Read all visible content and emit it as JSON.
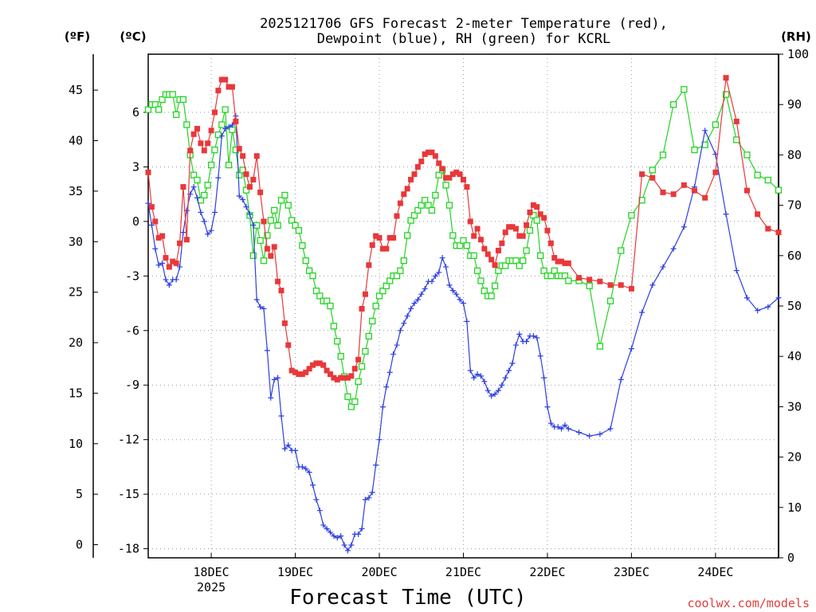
{
  "chart_data": {
    "type": "line",
    "title_lines": [
      "2025121706 GFS Forecast 2-meter Temperature (red),",
      "Dewpoint (blue), RH (green) for KCRL"
    ],
    "xlabel": "Forecast Time (UTC)",
    "credit": "coolwx.com/models",
    "unit_f": "(ºF)",
    "unit_c": "(ºC)",
    "unit_rh": "(RH)",
    "x_range_days": [
      "17DEC 06Z",
      "24DEC 18Z"
    ],
    "x_ticks": [
      {
        "day": "18DEC",
        "year": "2025"
      },
      {
        "day": "19DEC"
      },
      {
        "day": "20DEC"
      },
      {
        "day": "21DEC"
      },
      {
        "day": "22DEC"
      },
      {
        "day": "23DEC"
      },
      {
        "day": "24DEC"
      }
    ],
    "c_range": [
      -18.5,
      9.2
    ],
    "c_ticks": [
      6,
      3,
      0,
      -3,
      -6,
      -9,
      -12,
      -15,
      -18
    ],
    "f_ticks": [
      45,
      40,
      35,
      30,
      25,
      20,
      15,
      10,
      5,
      0
    ],
    "rh_range": [
      0,
      100
    ],
    "rh_ticks": [
      100,
      90,
      80,
      70,
      60,
      50,
      40,
      30,
      20,
      10,
      0
    ],
    "series": [
      {
        "name": "Temperature",
        "color": "#e8383a",
        "marker": "filled-square",
        "axis": "c",
        "t": [
          0,
          1,
          2,
          3,
          4,
          5,
          6,
          7,
          8,
          9,
          10,
          11,
          12,
          13,
          14,
          15,
          16,
          17,
          18,
          19,
          20,
          21,
          22,
          23,
          24,
          25,
          26,
          27,
          28,
          29,
          30,
          31,
          32,
          33,
          34,
          35,
          36,
          37,
          38,
          39,
          40,
          41,
          42,
          43,
          44,
          45,
          46,
          47,
          48,
          49,
          50,
          51,
          52,
          53,
          54,
          55,
          56,
          57,
          58,
          59,
          60,
          61,
          62,
          63,
          64,
          65,
          66,
          67,
          68,
          69,
          70,
          71,
          72,
          73,
          74,
          75,
          76,
          77,
          78,
          79,
          80,
          81,
          82,
          83,
          84,
          85,
          86,
          87,
          88,
          89,
          90,
          91,
          92,
          93,
          94,
          95,
          96,
          97,
          98,
          99,
          100,
          101,
          102,
          103,
          104,
          105,
          106,
          107,
          108,
          109,
          110,
          111,
          112,
          113,
          114,
          115,
          116,
          117,
          118,
          119,
          120,
          123,
          126,
          129,
          132,
          135,
          138,
          141,
          144,
          147,
          150,
          153,
          156,
          159,
          162,
          165,
          168,
          171,
          174,
          177,
          180
        ],
        "v": [
          2.7,
          0.8,
          0.0,
          -0.9,
          -0.8,
          -2.0,
          -2.5,
          -2.2,
          -2.3,
          -1.2,
          1.9,
          -1.0,
          3.9,
          4.8,
          5.1,
          4.3,
          3.9,
          4.3,
          5.0,
          6.0,
          7.2,
          7.8,
          7.8,
          7.4,
          7.4,
          5.5,
          4.0,
          3.6,
          2.6,
          1.9,
          2.3,
          3.6,
          1.6,
          0.0,
          -1.5,
          -1.9,
          -1.4,
          -3.3,
          -3.8,
          -5.6,
          -6.8,
          -8.2,
          -8.3,
          -8.4,
          -8.4,
          -8.3,
          -8.1,
          -7.9,
          -7.8,
          -7.8,
          -7.9,
          -8.2,
          -8.4,
          -8.6,
          -8.7,
          -8.6,
          -8.6,
          -8.6,
          -8.5,
          -8.1,
          -7.6,
          -4.8,
          -4.0,
          -2.4,
          -1.3,
          -0.8,
          -0.9,
          -1.5,
          -1.5,
          -0.9,
          -0.9,
          0.3,
          1.0,
          1.5,
          1.8,
          2.3,
          2.6,
          3.0,
          3.3,
          3.7,
          3.8,
          3.8,
          3.6,
          3.2,
          2.9,
          2.4,
          2.4,
          2.6,
          2.7,
          2.6,
          2.3,
          1.9,
          0.0,
          -0.8,
          -0.4,
          -1.0,
          -1.5,
          -1.8,
          -2.1,
          -2.4,
          -1.6,
          -1.2,
          -0.6,
          -0.3,
          -0.3,
          -0.4,
          -0.8,
          -0.8,
          -0.2,
          0.5,
          0.9,
          0.8,
          0.4,
          0.2,
          -0.5,
          -1.2,
          -2.0,
          -2.2,
          -2.2,
          -2.3,
          -2.3,
          -3.1,
          -3.2,
          -3.3,
          -3.5,
          -3.5,
          -3.7,
          2.6,
          2.4,
          1.6,
          1.5,
          2.0,
          1.7,
          1.3,
          2.7,
          7.9,
          5.5,
          1.7,
          0.4,
          -0.4,
          -0.6,
          -0.5,
          0.0,
          2.8
        ]
      },
      {
        "name": "Dewpoint",
        "color": "#2c3fe0",
        "marker": "plus",
        "axis": "c",
        "t": [
          0,
          1,
          2,
          3,
          4,
          5,
          6,
          7,
          8,
          9,
          10,
          11,
          12,
          13,
          14,
          15,
          16,
          17,
          18,
          19,
          20,
          21,
          22,
          23,
          24,
          25,
          26,
          27,
          28,
          29,
          30,
          31,
          32,
          33,
          34,
          35,
          36,
          37,
          38,
          39,
          40,
          41,
          42,
          43,
          44,
          45,
          46,
          47,
          48,
          49,
          50,
          51,
          52,
          53,
          54,
          55,
          56,
          57,
          58,
          59,
          60,
          61,
          62,
          63,
          64,
          65,
          66,
          67,
          68,
          69,
          70,
          71,
          72,
          73,
          74,
          75,
          76,
          77,
          78,
          79,
          80,
          81,
          82,
          83,
          84,
          85,
          86,
          87,
          88,
          89,
          90,
          91,
          92,
          93,
          94,
          95,
          96,
          97,
          98,
          99,
          100,
          101,
          102,
          103,
          104,
          105,
          106,
          107,
          108,
          109,
          110,
          111,
          112,
          113,
          114,
          115,
          116,
          117,
          118,
          119,
          120,
          123,
          126,
          129,
          132,
          135,
          138,
          141,
          144,
          147,
          150,
          153,
          156,
          159,
          162,
          165,
          168,
          171,
          174,
          177,
          180
        ],
        "v": [
          1.0,
          -0.2,
          -1.5,
          -2.4,
          -2.3,
          -3.2,
          -3.5,
          -3.2,
          -3.2,
          -2.5,
          -0.6,
          0.6,
          1.5,
          1.9,
          1.3,
          0.5,
          0.0,
          -0.7,
          -0.5,
          0.5,
          2.4,
          4.7,
          5.1,
          5.2,
          5.3,
          5.8,
          1.4,
          1.2,
          0.8,
          0.4,
          -0.2,
          -4.3,
          -4.7,
          -4.8,
          -7.1,
          -9.7,
          -8.7,
          -8.6,
          -10.7,
          -12.5,
          -12.3,
          -12.6,
          -12.6,
          -13.5,
          -13.5,
          -13.6,
          -13.8,
          -14.5,
          -15.3,
          -15.9,
          -16.7,
          -16.9,
          -17.1,
          -17.3,
          -17.4,
          -17.3,
          -17.8,
          -18.1,
          -17.8,
          -17.2,
          -17.2,
          -16.9,
          -15.3,
          -15.2,
          -14.9,
          -13.4,
          -12.0,
          -10.2,
          -9.1,
          -8.3,
          -7.3,
          -6.8,
          -6.0,
          -5.6,
          -5.2,
          -4.8,
          -4.5,
          -4.3,
          -4.0,
          -3.7,
          -3.3,
          -3.3,
          -3.0,
          -2.8,
          -2.0,
          -2.5,
          -3.5,
          -3.8,
          -4.0,
          -4.3,
          -4.5,
          -5.5,
          -8.2,
          -8.6,
          -8.4,
          -8.5,
          -8.8,
          -9.3,
          -9.6,
          -9.5,
          -9.3,
          -9.0,
          -8.6,
          -8.2,
          -7.8,
          -6.8,
          -6.2,
          -6.6,
          -6.6,
          -6.3,
          -6.3,
          -6.4,
          -7.4,
          -8.6,
          -10.2,
          -11.1,
          -11.3,
          -11.3,
          -11.4,
          -11.2,
          -11.4,
          -11.6,
          -11.8,
          -11.7,
          -11.4,
          -8.7,
          -7.0,
          -5.0,
          -3.5,
          -2.5,
          -1.5,
          -0.3,
          1.9,
          5.0,
          3.7,
          0.4,
          -2.7,
          -4.2,
          -4.9,
          -4.7,
          -4.2,
          -1.4
        ],
        "v_f_note": ""
      },
      {
        "name": "RH",
        "color": "#22d422",
        "marker": "open-square",
        "axis": "rh",
        "t": [
          0,
          1,
          2,
          3,
          4,
          5,
          6,
          7,
          8,
          9,
          10,
          11,
          12,
          13,
          14,
          15,
          16,
          17,
          18,
          19,
          20,
          21,
          22,
          23,
          24,
          25,
          26,
          27,
          28,
          29,
          30,
          31,
          32,
          33,
          34,
          35,
          36,
          37,
          38,
          39,
          40,
          41,
          42,
          43,
          44,
          45,
          46,
          47,
          48,
          49,
          50,
          51,
          52,
          53,
          54,
          55,
          56,
          57,
          58,
          59,
          60,
          61,
          62,
          63,
          64,
          65,
          66,
          67,
          68,
          69,
          70,
          71,
          72,
          73,
          74,
          75,
          76,
          77,
          78,
          79,
          80,
          81,
          82,
          83,
          84,
          85,
          86,
          87,
          88,
          89,
          90,
          91,
          92,
          93,
          94,
          95,
          96,
          97,
          98,
          99,
          100,
          101,
          102,
          103,
          104,
          105,
          106,
          107,
          108,
          109,
          110,
          111,
          112,
          113,
          114,
          115,
          116,
          117,
          118,
          119,
          120,
          123,
          126,
          129,
          132,
          135,
          138,
          141,
          144,
          147,
          150,
          153,
          156,
          159,
          162,
          165,
          168,
          171,
          174,
          177,
          180
        ],
        "v": [
          89,
          90,
          90,
          89,
          91,
          92,
          92,
          92,
          88,
          91,
          91,
          86,
          80,
          76,
          75,
          71,
          72,
          74,
          78,
          81,
          84,
          86,
          89,
          78,
          85,
          81,
          76,
          77,
          73,
          68,
          60,
          66,
          63,
          59,
          64,
          67,
          69,
          66,
          71,
          72,
          70,
          67,
          66,
          65,
          62,
          59,
          57,
          56,
          53,
          52,
          51,
          51,
          50,
          46,
          43,
          40,
          36,
          32,
          30,
          31,
          35,
          38,
          41,
          44,
          47,
          50,
          52,
          53,
          54,
          55,
          56,
          56,
          57,
          59,
          64,
          67,
          68,
          69,
          70,
          71,
          70,
          69,
          72,
          76,
          77,
          74,
          70,
          64,
          62,
          62,
          63,
          62,
          60,
          60,
          57,
          55,
          53,
          52,
          52,
          54,
          57,
          58,
          58,
          59,
          59,
          59,
          58,
          59,
          61,
          65,
          68,
          67,
          60,
          57,
          56,
          56,
          57,
          56,
          56,
          56,
          55,
          55,
          54,
          42,
          51,
          61,
          68,
          71,
          77,
          80,
          90,
          93,
          81,
          82,
          86,
          92,
          83,
          80,
          76,
          75,
          73,
          72
        ]
      }
    ]
  }
}
